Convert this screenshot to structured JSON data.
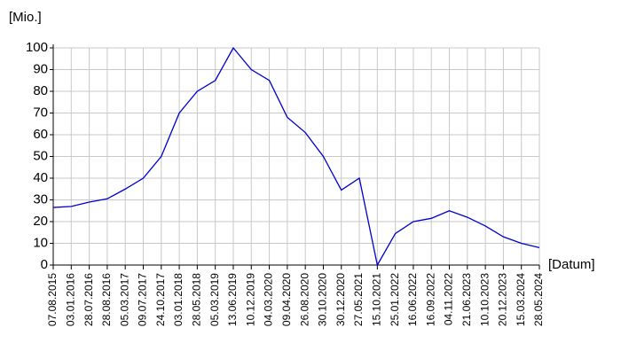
{
  "chart_data": {
    "type": "line",
    "y_label": "[Mio.]",
    "x_label": "[Datum]",
    "categories": [
      "07.08.2015",
      "03.01.2016",
      "28.07.2016",
      "28.08.2016",
      "05.03.2017",
      "09.07.2017",
      "24.10.2017",
      "03.01.2018",
      "28.05.2018",
      "05.03.2019",
      "13.06.2019",
      "10.12.2019",
      "04.03.2020",
      "09.04.2020",
      "26.08.2020",
      "30.10.2020",
      "30.12.2020",
      "27.05.2021",
      "15.10.2021",
      "25.01.2022",
      "16.06.2022",
      "16.09.2022",
      "04.11.2022",
      "21.06.2023",
      "10.10.2023",
      "20.12.2023",
      "15.03.2024",
      "28.05.2024"
    ],
    "values": [
      26.5,
      27,
      29,
      30.5,
      35,
      40,
      50,
      70,
      80,
      85,
      100,
      90,
      85,
      68,
      61,
      50,
      34.5,
      40,
      0,
      14.5,
      20,
      21.5,
      25,
      22,
      18,
      13,
      10,
      8
    ],
    "color": "#0000cc",
    "ylim": [
      0,
      100
    ],
    "yticks": [
      0,
      10,
      20,
      30,
      40,
      50,
      60,
      70,
      80,
      90,
      100
    ],
    "grid": true
  }
}
